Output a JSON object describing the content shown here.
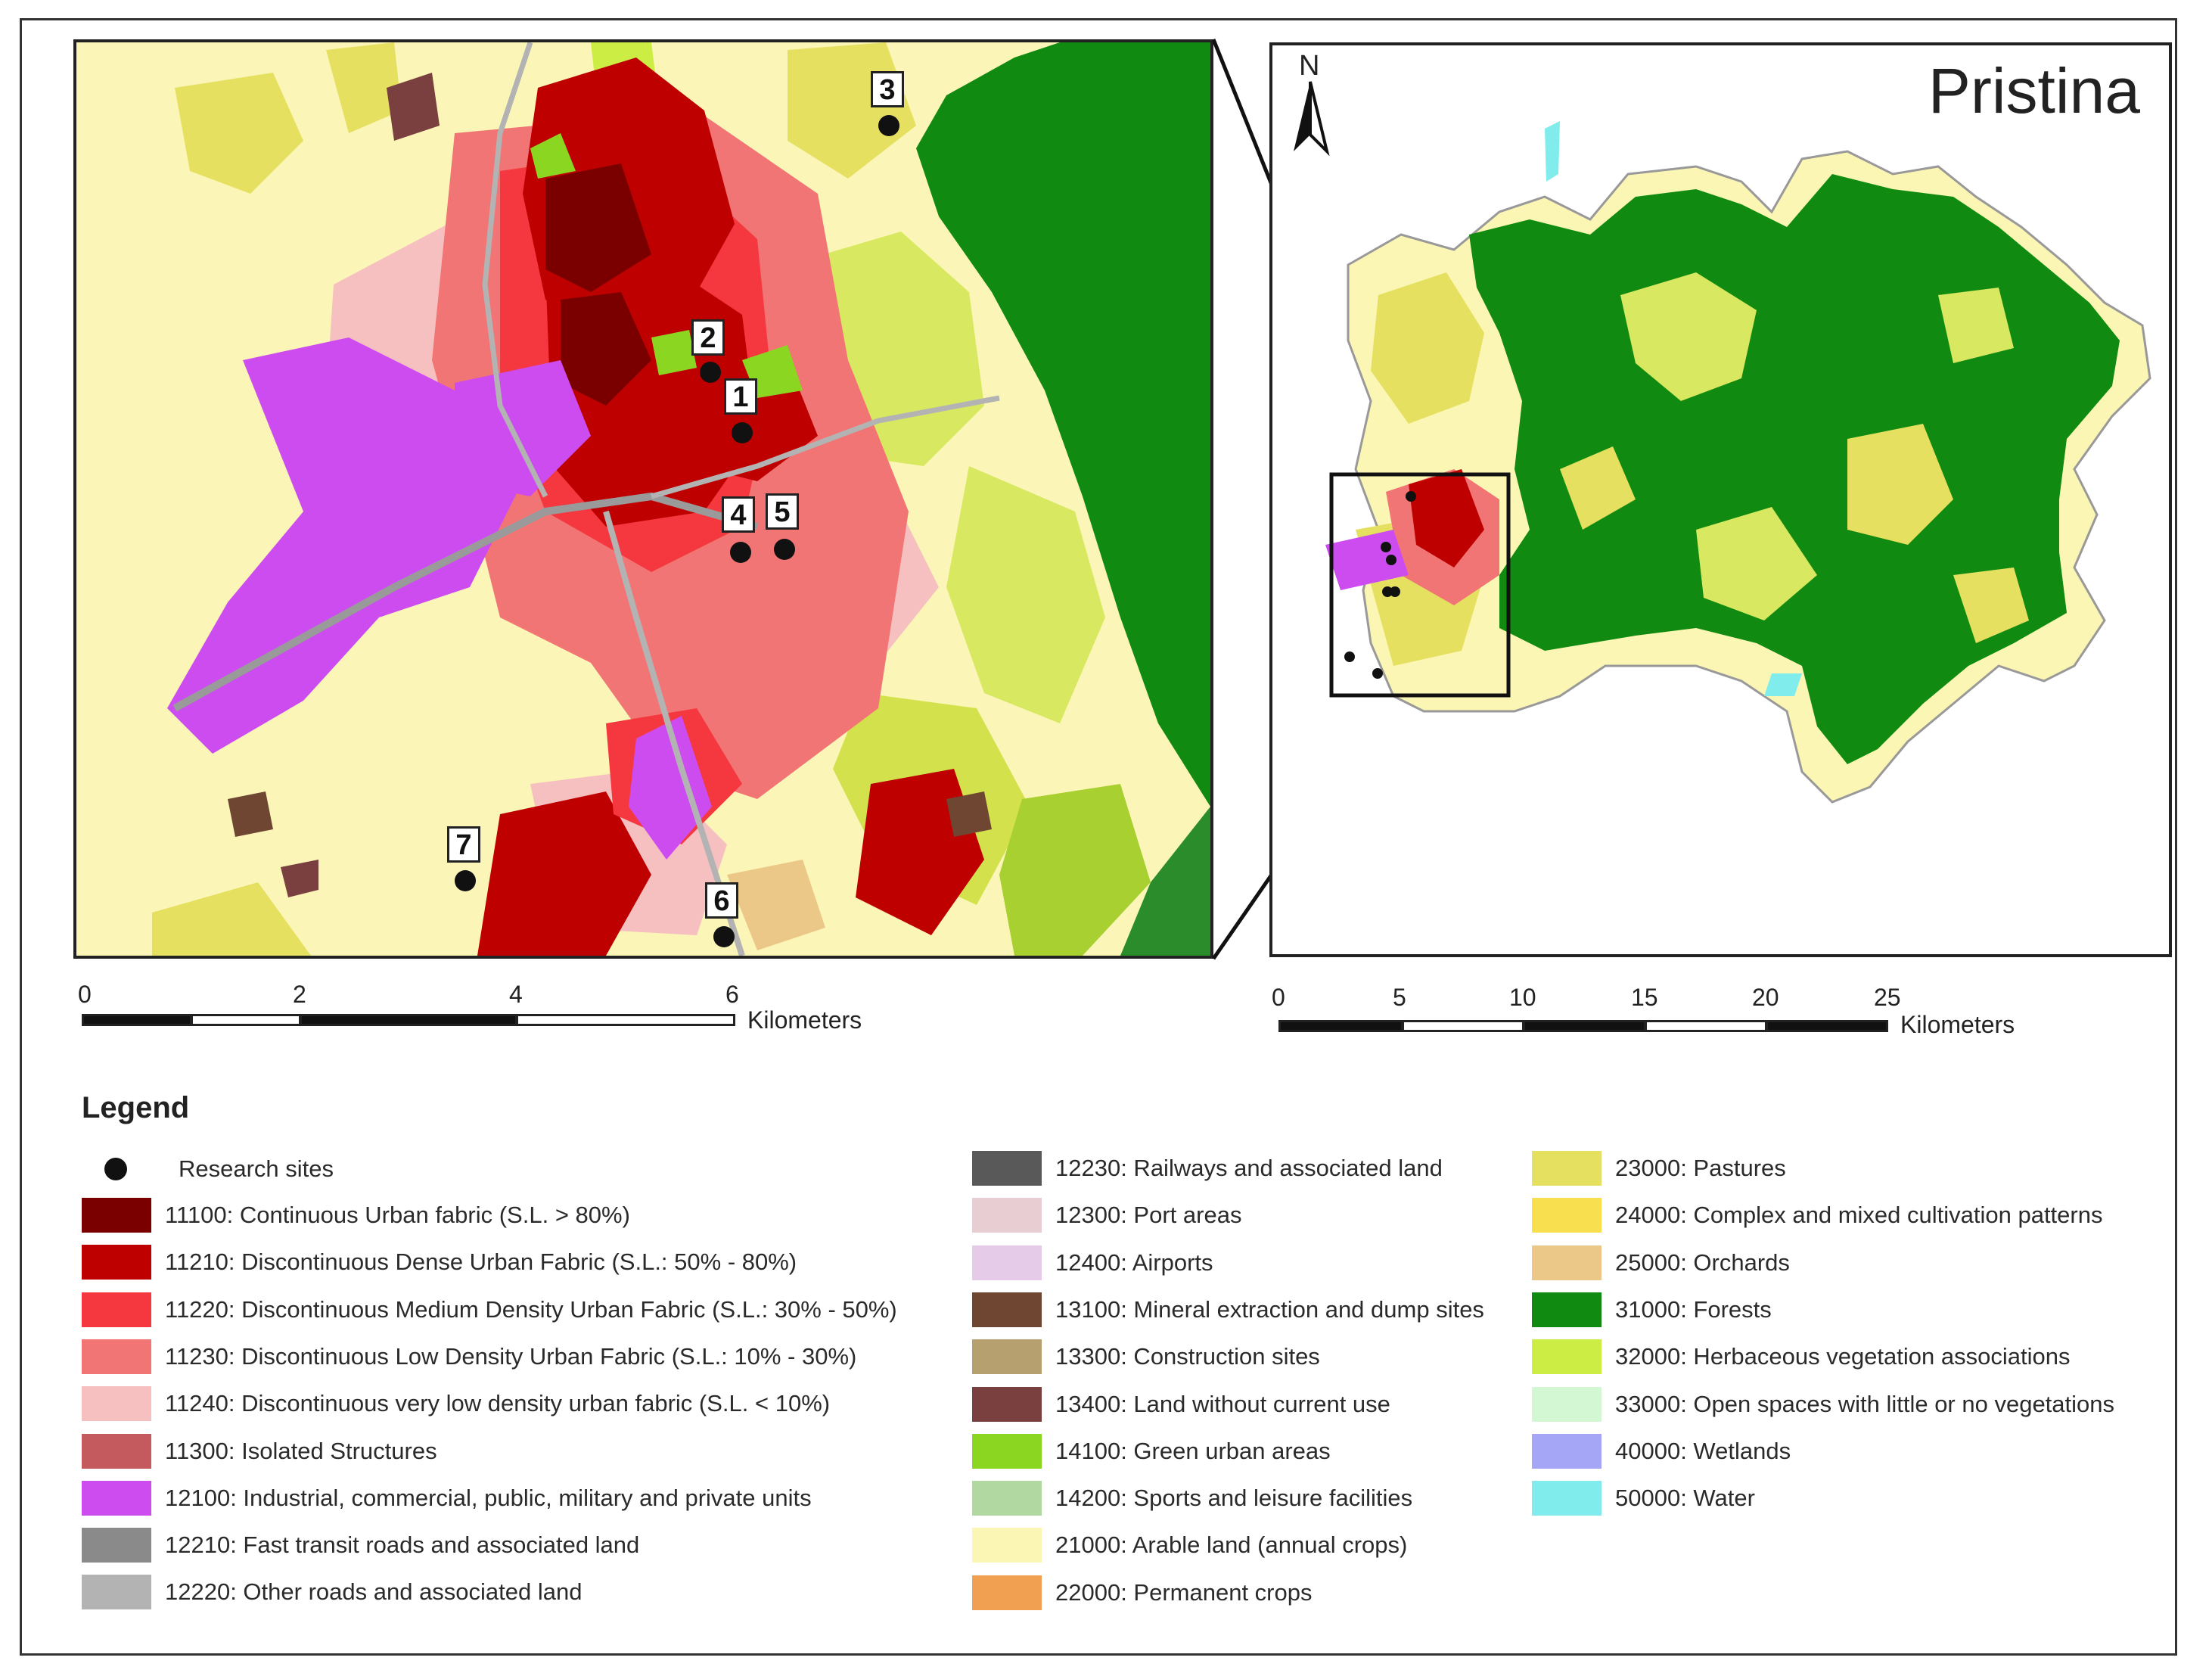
{
  "left_map": {
    "sites": [
      {
        "label": "1"
      },
      {
        "label": "2"
      },
      {
        "label": "3"
      },
      {
        "label": "4"
      },
      {
        "label": "5"
      },
      {
        "label": "6"
      },
      {
        "label": "7"
      }
    ]
  },
  "right_map": {
    "title": "Pristina",
    "north_label": "N"
  },
  "scalebar_left": {
    "ticks": [
      "0",
      "2",
      "4",
      "6"
    ],
    "unit": "Kilometers"
  },
  "scalebar_right": {
    "ticks": [
      "0",
      "5",
      "10",
      "15",
      "20",
      "25"
    ],
    "unit": "Kilometers"
  },
  "legend": {
    "title": "Legend",
    "research_sites": "Research sites",
    "col1": [
      {
        "label": "11100: Continuous Urban fabric (S.L. > 80%)",
        "color": "#7a0000"
      },
      {
        "label": "11210: Discontinuous Dense Urban Fabric (S.L.: 50% - 80%)",
        "color": "#bf0000"
      },
      {
        "label": "11220: Discontinuous Medium Density Urban Fabric (S.L.: 30% - 50%)",
        "color": "#f5383f"
      },
      {
        "label": "11230: Discontinuous Low Density Urban Fabric (S.L.: 10% - 30%)",
        "color": "#f27575"
      },
      {
        "label": "11240: Discontinuous very low density urban fabric (S.L. < 10%)",
        "color": "#f7c0c0"
      },
      {
        "label": "11300: Isolated Structures",
        "color": "#c55a5e"
      },
      {
        "label": "12100: Industrial, commercial, public, military and private units",
        "color": "#cc4cf0"
      },
      {
        "label": "12210: Fast transit roads and associated land",
        "color": "#8a8a8a"
      },
      {
        "label": "12220: Other roads and associated land",
        "color": "#b3b3b3"
      }
    ],
    "col2": [
      {
        "label": "12230: Railways and associated land",
        "color": "#595959"
      },
      {
        "label": "12300: Port areas",
        "color": "#e8cdd2"
      },
      {
        "label": "12400: Airports",
        "color": "#e5cbe8"
      },
      {
        "label": "13100: Mineral extraction and dump sites",
        "color": "#6e4632"
      },
      {
        "label": "13300: Construction sites",
        "color": "#b6a070"
      },
      {
        "label": "13400: Land without current use",
        "color": "#7a3f3f"
      },
      {
        "label": "14100: Green urban areas",
        "color": "#8ad620"
      },
      {
        "label": "14200: Sports and leisure facilities",
        "color": "#b0d8a0"
      },
      {
        "label": "21000: Arable land (annual crops)",
        "color": "#fbf6b4"
      },
      {
        "label": "22000: Permanent crops",
        "color": "#f0a050"
      }
    ],
    "col3": [
      {
        "label": "23000: Pastures",
        "color": "#e6e060"
      },
      {
        "label": "24000: Complex and mixed cultivation patterns",
        "color": "#f7df50"
      },
      {
        "label": "25000: Orchards",
        "color": "#ecc888"
      },
      {
        "label": "31000: Forests",
        "color": "#108a10"
      },
      {
        "label": "32000: Herbaceous vegetation associations",
        "color": "#ccee44"
      },
      {
        "label": "33000: Open spaces with little or no vegetations",
        "color": "#d2f7d2"
      },
      {
        "label": "40000: Wetlands",
        "color": "#a6a6f7"
      },
      {
        "label": "50000: Water",
        "color": "#80ecec"
      }
    ]
  }
}
